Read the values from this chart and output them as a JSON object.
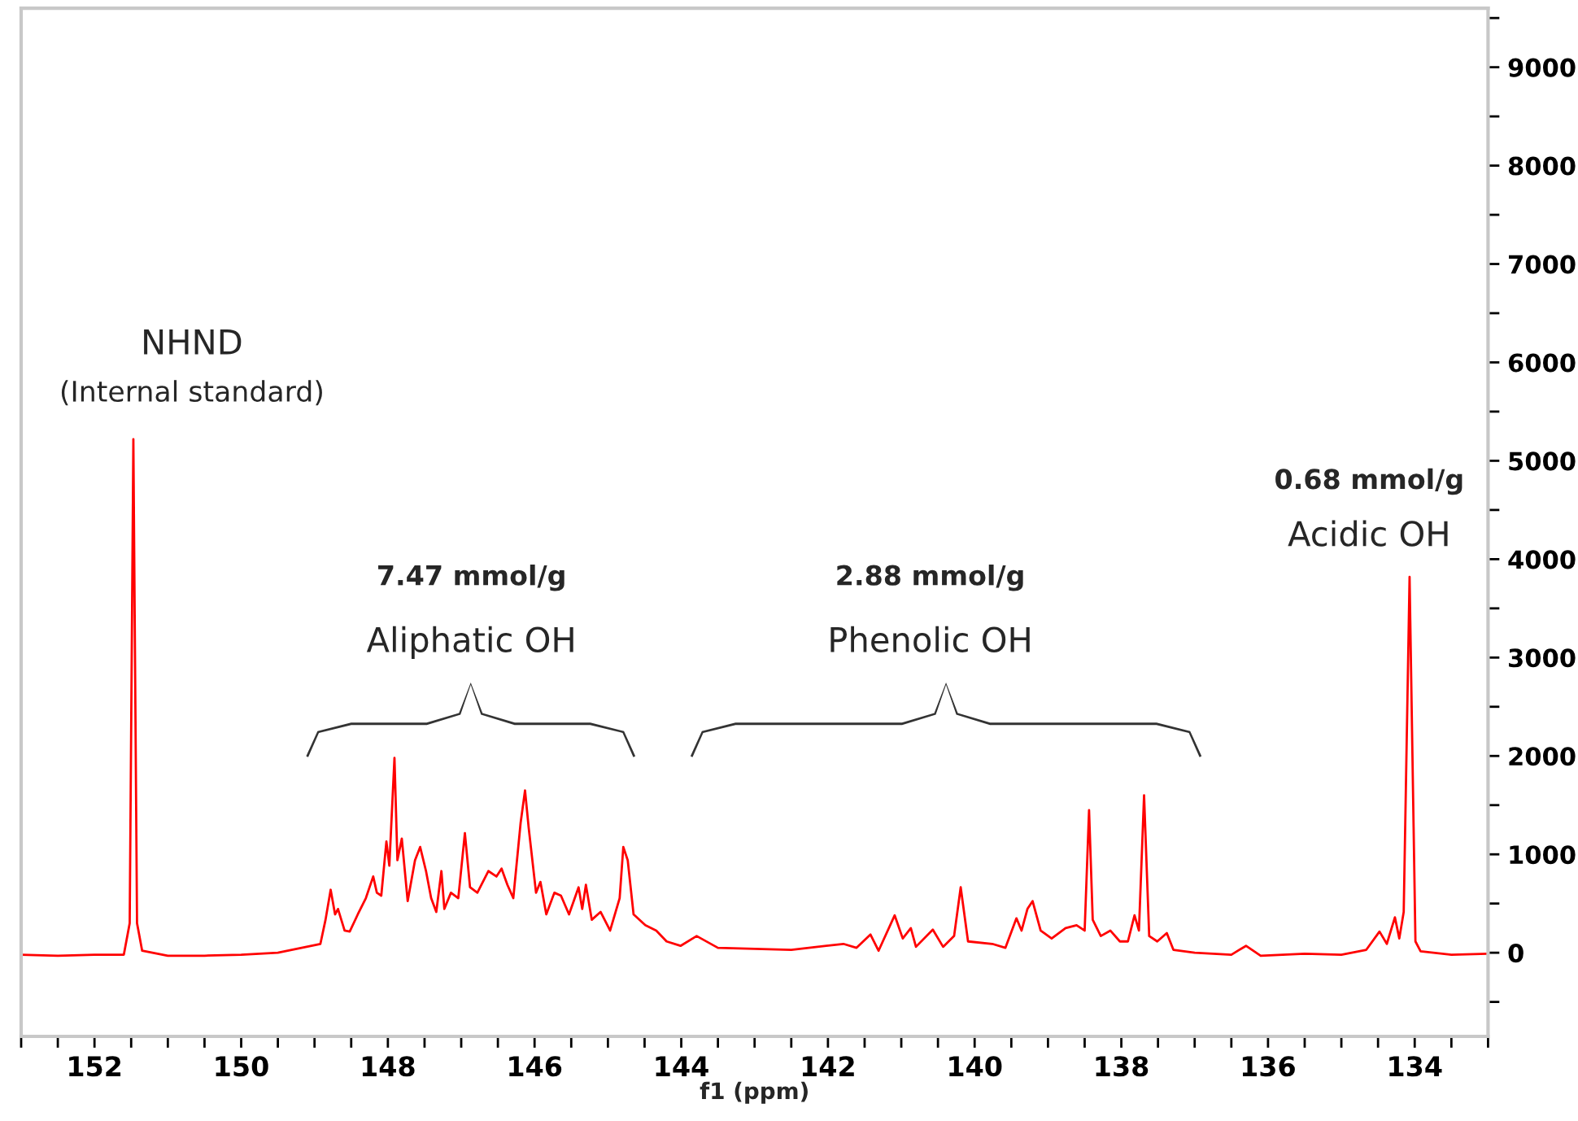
{
  "chart_data": {
    "type": "line",
    "xlabel": "f1 (ppm)",
    "x": [
      153,
      152.5,
      152,
      151.6,
      151.52,
      151.47,
      151.42,
      151.35,
      151,
      150.5,
      150,
      149.5,
      148.92,
      148.85,
      148.78,
      148.72,
      148.68,
      148.59,
      148.52,
      148.41,
      148.3,
      148.2,
      148.15,
      148.09,
      148.02,
      147.98,
      147.91,
      147.87,
      147.81,
      147.73,
      147.63,
      147.56,
      147.48,
      147.41,
      147.34,
      147.27,
      147.23,
      147.14,
      147.04,
      146.95,
      146.88,
      146.78,
      146.63,
      146.52,
      146.45,
      146.37,
      146.29,
      146.19,
      146.13,
      146.08,
      145.98,
      145.92,
      145.84,
      145.73,
      145.64,
      145.53,
      145.4,
      145.35,
      145.3,
      145.22,
      145.1,
      144.97,
      144.84,
      144.79,
      144.73,
      144.65,
      144.49,
      144.34,
      144.2,
      144.01,
      143.79,
      143.5,
      142.5,
      141.79,
      141.61,
      141.42,
      141.31,
      141.09,
      140.98,
      140.87,
      140.8,
      140.57,
      140.43,
      140.28,
      140.19,
      140.09,
      139.76,
      139.58,
      139.43,
      139.36,
      139.28,
      139.21,
      139.1,
      138.95,
      138.76,
      138.61,
      138.5,
      138.44,
      138.39,
      138.28,
      138.15,
      138.02,
      137.91,
      137.82,
      137.76,
      137.69,
      137.62,
      137.51,
      137.38,
      137.29,
      137,
      136.5,
      136.3,
      136.1,
      135.5,
      135,
      134.66,
      134.48,
      134.38,
      134.27,
      134.21,
      134.15,
      134.07,
      133.99,
      133.92,
      133.5,
      133
    ],
    "series": [
      {
        "color": "#ff0000",
        "values": [
          -20,
          -30,
          -20,
          -20,
          300,
          5220,
          300,
          20,
          -30,
          -30,
          -20,
          0,
          90,
          335,
          640,
          390,
          445,
          225,
          215,
          390,
          555,
          775,
          610,
          580,
          1130,
          885,
          1980,
          940,
          1160,
          525,
          940,
          1075,
          830,
          555,
          415,
          830,
          445,
          610,
          555,
          1215,
          665,
          610,
          830,
          775,
          855,
          690,
          555,
          1320,
          1650,
          1270,
          610,
          720,
          390,
          610,
          580,
          390,
          665,
          445,
          690,
          335,
          415,
          225,
          555,
          1075,
          940,
          390,
          280,
          225,
          115,
          70,
          170,
          50,
          30,
          90,
          50,
          185,
          20,
          380,
          145,
          250,
          60,
          235,
          60,
          170,
          665,
          115,
          90,
          50,
          350,
          225,
          445,
          525,
          225,
          145,
          250,
          280,
          225,
          1450,
          335,
          170,
          225,
          115,
          115,
          380,
          225,
          1600,
          170,
          115,
          200,
          30,
          0,
          -20,
          70,
          -30,
          -10,
          -20,
          30,
          215,
          90,
          360,
          145,
          415,
          3820,
          115,
          15,
          -20,
          -10
        ]
      }
    ],
    "xlim": [
      153,
      133
    ],
    "ylim": [
      -850,
      9600
    ],
    "xticks": [
      {
        "value": 153,
        "label": null
      },
      {
        "value": 152.5,
        "label": null
      },
      152,
      {
        "value": 151.5,
        "label": null
      },
      {
        "value": 151,
        "label": null
      },
      {
        "value": 150.5,
        "label": null
      },
      150,
      {
        "value": 149.5,
        "label": null
      },
      {
        "value": 149,
        "label": null
      },
      {
        "value": 148.5,
        "label": null
      },
      148,
      {
        "value": 147.5,
        "label": null
      },
      {
        "value": 147,
        "label": null
      },
      {
        "value": 146.5,
        "label": null
      },
      146,
      {
        "value": 145.5,
        "label": null
      },
      {
        "value": 145,
        "label": null
      },
      {
        "value": 144.5,
        "label": null
      },
      144,
      {
        "value": 143.5,
        "label": null
      },
      {
        "value": 143,
        "label": null
      },
      {
        "value": 142.5,
        "label": null
      },
      142,
      {
        "value": 141.5,
        "label": null
      },
      {
        "value": 141,
        "label": null
      },
      {
        "value": 140.5,
        "label": null
      },
      140,
      {
        "value": 139.5,
        "label": null
      },
      {
        "value": 139,
        "label": null
      },
      {
        "value": 138.5,
        "label": null
      },
      138,
      {
        "value": 137.5,
        "label": null
      },
      {
        "value": 137,
        "label": null
      },
      {
        "value": 136.5,
        "label": null
      },
      136,
      {
        "value": 135.5,
        "label": null
      },
      {
        "value": 135,
        "label": null
      },
      {
        "value": 134.5,
        "label": null
      },
      134,
      {
        "value": 133.5,
        "label": null
      },
      {
        "value": 133,
        "label": null
      }
    ],
    "yticks": [
      {
        "value": -500,
        "label": null
      },
      0,
      {
        "value": 500,
        "label": null
      },
      1000,
      {
        "value": 1500,
        "label": null
      },
      2000,
      {
        "value": 2500,
        "label": null
      },
      3000,
      {
        "value": 3500,
        "label": null
      },
      4000,
      {
        "value": 4500,
        "label": null
      },
      5000,
      {
        "value": 5500,
        "label": null
      },
      6000,
      {
        "value": 6500,
        "label": null
      },
      7000,
      {
        "value": 7500,
        "label": null
      },
      8000,
      {
        "value": 8500,
        "label": null
      },
      9000,
      {
        "value": 9500,
        "label": null
      }
    ],
    "grid": false,
    "marker": "none",
    "line_style": "solid",
    "annotations": [
      "NHND",
      "(Internal standard)",
      "7.47 mmol/g",
      "Aliphatic OH",
      "2.88 mmol/g",
      "Phenolic OH",
      "0.68 mmol/g",
      "Acidic OH"
    ]
  }
}
